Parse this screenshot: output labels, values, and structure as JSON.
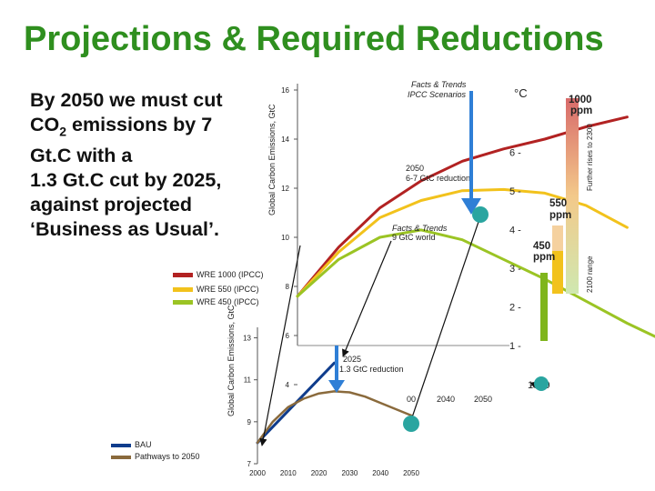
{
  "slide": {
    "title": "Projections & Required Reductions",
    "body_lines": [
      "By 2050 we must cut",
      "CO",
      "2",
      " emissions by 7",
      "Gt.C with a",
      "1.3 Gt.C cut by 2025,",
      "against projected",
      "‘Business as Usual’."
    ]
  },
  "colors": {
    "title": "#2f8f1f",
    "wre1000": "#b22222",
    "wre550": "#f2c21c",
    "wre450": "#9bc424",
    "bau": "#0f3c8c",
    "pathways": "#8a6a3c",
    "arrow_blue": "#2f7fd6",
    "marker": "#2aa5a0"
  },
  "chart_data": [
    {
      "type": "line",
      "ylabel": "Global Carbon Emissions, GtC",
      "yticks": [
        4,
        6,
        8,
        10,
        12,
        14,
        16
      ],
      "ylim": [
        4,
        17
      ],
      "xlim": [
        2000,
        2100
      ],
      "xticks_visible": [
        "00",
        "2040",
        "2050"
      ],
      "annotations": {
        "ipcc_title": [
          "Facts & Trends",
          "IPCC Scenarios"
        ],
        "reduction_2050": [
          "2050",
          "6-7 GtC reduction"
        ],
        "world_9": [
          "Facts & Trends",
          "9 GtC world"
        ]
      },
      "legend": [
        "WRE 1000 (IPCC)",
        "WRE 550 (IPCC)",
        "WRE 450 (IPCC)"
      ],
      "series": [
        {
          "name": "WRE 1000 (IPCC)",
          "x": [
            2000,
            2010,
            2020,
            2030,
            2040,
            2050,
            2060,
            2070,
            2080
          ],
          "values": [
            7.6,
            9.6,
            11.2,
            12.3,
            13.1,
            13.6,
            14.0,
            14.5,
            14.9
          ]
        },
        {
          "name": "WRE 550 (IPCC)",
          "x": [
            2000,
            2010,
            2020,
            2030,
            2040,
            2050,
            2060,
            2070,
            2080
          ],
          "values": [
            7.6,
            9.4,
            10.8,
            11.5,
            11.9,
            11.95,
            11.8,
            11.3,
            10.4
          ]
        },
        {
          "name": "WRE 450 (IPCC)",
          "x": [
            2000,
            2010,
            2020,
            2030,
            2040,
            2050,
            2060,
            2070,
            2080,
            2090
          ],
          "values": [
            7.6,
            9.1,
            10.0,
            10.3,
            9.9,
            9.1,
            8.3,
            7.4,
            6.5,
            5.7
          ]
        }
      ],
      "temperature_scale": {
        "unit": "°C",
        "ticks": [
          "1 -",
          "2 -",
          "3 -",
          "4 -",
          "5 -",
          "6 -"
        ],
        "values": [
          1,
          2,
          3,
          4,
          5,
          6
        ]
      },
      "ppm_labels": {
        "p1000": [
          "1000",
          "ppm"
        ],
        "p550": [
          "550",
          "ppm"
        ],
        "p450": [
          "450",
          "ppm"
        ],
        "year_1990": "1990"
      },
      "side_labels": [
        "Further rises to 2300",
        "2100 range"
      ]
    },
    {
      "type": "line",
      "ylabel": "Global Carbon Emissions, GtC",
      "yticks": [
        7,
        9,
        11,
        13
      ],
      "ylim": [
        7,
        13.5
      ],
      "xticks": [
        2000,
        2010,
        2020,
        2030,
        2040,
        2050
      ],
      "xlim": [
        2000,
        2050
      ],
      "annotation": [
        "2025",
        "1.3 GtC reduction"
      ],
      "legend": [
        "BAU",
        "Pathways to 2050"
      ],
      "series": [
        {
          "name": "BAU",
          "x": [
            2000,
            2025
          ],
          "values": [
            8.0,
            11.8
          ]
        },
        {
          "name": "Pathways to 2050",
          "x": [
            2000,
            2005,
            2010,
            2015,
            2020,
            2025,
            2030,
            2035,
            2040,
            2045,
            2050
          ],
          "values": [
            8.0,
            9.0,
            9.7,
            10.1,
            10.35,
            10.45,
            10.4,
            10.2,
            9.9,
            9.6,
            9.3
          ]
        }
      ]
    }
  ]
}
